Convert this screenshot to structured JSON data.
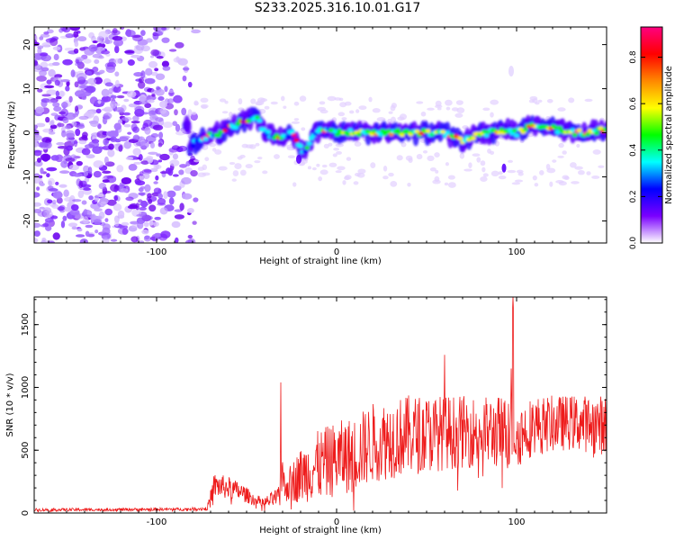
{
  "title": "S233.2025.316.10.01.G17",
  "chart_data": [
    {
      "type": "heatmap",
      "xlabel": "Height of straight line (km)",
      "ylabel": "Frequency (Hz)",
      "xlim": [
        -168,
        150
      ],
      "ylim": [
        -25,
        24
      ],
      "xticks": [
        -100,
        0,
        100
      ],
      "yticks": [
        -20,
        -10,
        0,
        10,
        20
      ],
      "colorbar": {
        "label": "Normalized spectral amplitude",
        "range": [
          0.0,
          0.93
        ],
        "ticks": [
          "0.0",
          "0.2",
          "0.4",
          "0.6",
          "0.8"
        ],
        "colormap": [
          "#ffffff",
          "#7a00ff",
          "#0000ff",
          "#00ffff",
          "#00ff00",
          "#ffff00",
          "#ff8800",
          "#ff0000",
          "#ff0080"
        ]
      },
      "ridge": {
        "description_points_x": [
          -82,
          -75,
          -65,
          -55,
          -45,
          -40,
          -30,
          -25,
          -18,
          -12,
          -5,
          0,
          10,
          20,
          30,
          40,
          50,
          60,
          70,
          80,
          90,
          95,
          100,
          110,
          120,
          130,
          140,
          150
        ],
        "frequency_y": [
          -3,
          -1,
          0,
          2,
          4,
          0,
          -1,
          0,
          -5,
          0,
          1,
          0,
          0,
          0,
          0,
          0,
          0,
          0,
          -2,
          0,
          0,
          1,
          0,
          2,
          1,
          0,
          0,
          1
        ]
      },
      "noise_region_x": [
        -168,
        -82
      ]
    },
    {
      "type": "line",
      "xlabel": "Height of straight line (km)",
      "ylabel": "SNR (10 * v/v)",
      "xlim": [
        -168,
        150
      ],
      "ylim": [
        0,
        1720
      ],
      "xticks": [
        -100,
        0,
        100
      ],
      "yticks": [
        0,
        500,
        1000,
        1500
      ],
      "color": "#ee1c1c",
      "anchors_x": [
        -168,
        -85,
        -72,
        -68,
        -60,
        -52,
        -45,
        -40,
        -32,
        -31,
        -29,
        -20,
        -10,
        0,
        10,
        20,
        40,
        60,
        80,
        95,
        98,
        101,
        110,
        130,
        150
      ],
      "anchors_mean": [
        25,
        30,
        35,
        220,
        200,
        160,
        100,
        80,
        130,
        400,
        200,
        300,
        380,
        430,
        470,
        560,
        620,
        640,
        650,
        640,
        1720,
        620,
        700,
        720,
        700
      ],
      "anchors_amp": [
        12,
        12,
        15,
        100,
        90,
        70,
        45,
        45,
        80,
        300,
        110,
        220,
        280,
        300,
        300,
        320,
        320,
        300,
        280,
        300,
        0,
        260,
        230,
        220,
        240
      ],
      "peaks": [
        {
          "x": -31,
          "y": 1040
        },
        {
          "x": 60,
          "y": 1260
        },
        {
          "x": 98,
          "y": 1720
        },
        {
          "x": 97,
          "y": 1150
        }
      ]
    }
  ]
}
